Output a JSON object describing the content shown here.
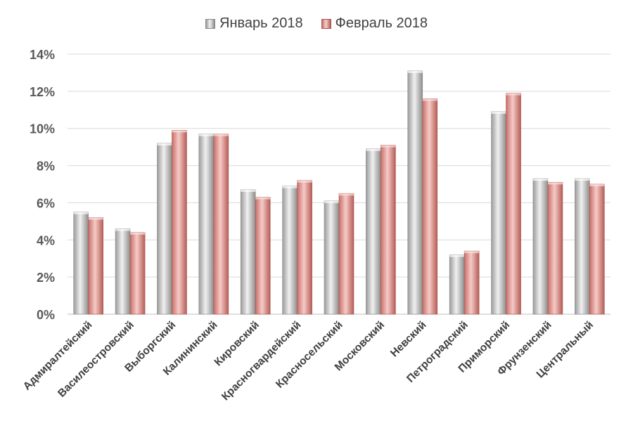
{
  "chart_data": {
    "type": "bar",
    "title": "",
    "xlabel": "",
    "ylabel": "",
    "ylim": [
      0,
      14
    ],
    "yticks": [
      "0%",
      "2%",
      "4%",
      "6%",
      "8%",
      "10%",
      "12%",
      "14%"
    ],
    "ytick_values": [
      0,
      2,
      4,
      6,
      8,
      10,
      12,
      14
    ],
    "grid": true,
    "legend_position": "top-center",
    "categories": [
      "Адмиралтейский",
      "Василеостровский",
      "Выборгский",
      "Калининский",
      "Кировский",
      "Красногвардейский",
      "Красносельский",
      "Московский",
      "Невский",
      "Петроградский",
      "Приморский",
      "Фрунзенский",
      "Центральный"
    ],
    "series": [
      {
        "name": "Январь 2018",
        "color": "#c9c9c9",
        "values": [
          5.5,
          4.6,
          9.2,
          9.7,
          6.7,
          6.9,
          6.1,
          8.9,
          13.1,
          3.2,
          10.9,
          7.3,
          7.3
        ]
      },
      {
        "name": "Февраль 2018",
        "color": "#e6a09b",
        "values": [
          5.2,
          4.4,
          9.9,
          9.7,
          6.3,
          7.2,
          6.5,
          9.1,
          11.6,
          3.4,
          11.9,
          7.1,
          7.0
        ]
      }
    ]
  }
}
